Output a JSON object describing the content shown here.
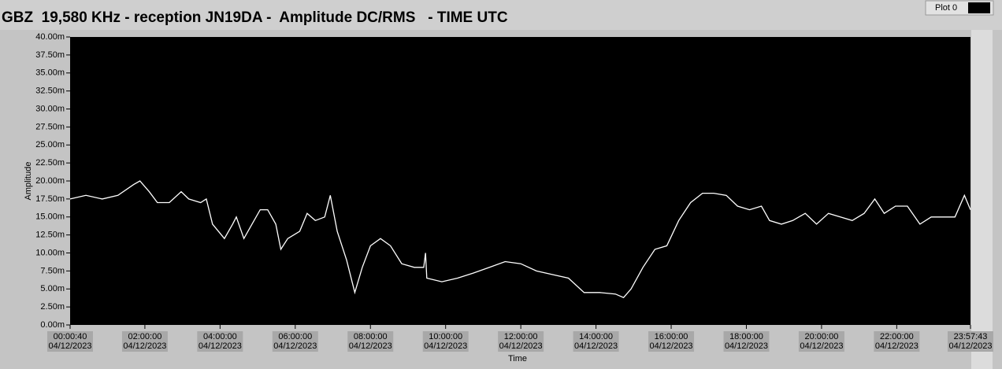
{
  "chart_data": {
    "type": "line",
    "title": "GBZ  19,580 KHz - reception JN19DA -  Amplitude DC/RMS   - TIME UTC",
    "xlabel": "Time",
    "ylabel": "Amplitude",
    "x": [
      "00:00:40",
      "00:26",
      "00:52",
      "01:17",
      "01:42",
      "01:52",
      "02:07",
      "02:20",
      "02:39",
      "02:58",
      "03:10",
      "03:29",
      "03:38",
      "03:48",
      "04:07",
      "04:20",
      "04:26",
      "04:38",
      "04:51",
      "05:04",
      "05:16",
      "05:29",
      "05:37",
      "05:48",
      "06:07",
      "06:19",
      "06:32",
      "06:47",
      "06:56",
      "07:07",
      "07:22",
      "07:35",
      "07:47",
      "08:00",
      "08:16",
      "08:32",
      "08:50",
      "09:10",
      "09:25",
      "09:28",
      "09:30",
      "09:54",
      "10:19",
      "10:44",
      "11:10",
      "11:35",
      "12:00",
      "12:25",
      "12:50",
      "13:16",
      "13:41",
      "14:06",
      "14:31",
      "14:44",
      "14:56",
      "15:15",
      "15:34",
      "15:53",
      "16:12",
      "16:31",
      "16:50",
      "17:08",
      "17:28",
      "17:46",
      "18:05",
      "18:24",
      "18:37",
      "18:56",
      "19:14",
      "19:34",
      "19:52",
      "20:11",
      "20:30",
      "20:49",
      "21:08",
      "21:25",
      "21:40",
      "21:58",
      "22:17",
      "22:37",
      "22:55",
      "23:14",
      "23:33",
      "23:48",
      "23:57:43"
    ],
    "series": [
      {
        "name": "Plot 0",
        "color": "#ffffff",
        "values": [
          17.5,
          18,
          17.5,
          18,
          19.5,
          20,
          18.5,
          17,
          17,
          18.5,
          17.5,
          17,
          17.5,
          14,
          12,
          14,
          15,
          12,
          14,
          16,
          16,
          14,
          10.5,
          12,
          13,
          15.5,
          14.5,
          15,
          18,
          13,
          9,
          4.5,
          8,
          11,
          12,
          11,
          8.5,
          8,
          8,
          10,
          6.5,
          6,
          6.5,
          7.2,
          8,
          8.8,
          8.5,
          7.5,
          7,
          6.5,
          4.5,
          4.5,
          4.3,
          3.8,
          5,
          8,
          10.5,
          11,
          14.5,
          17,
          18.3,
          18.3,
          18,
          16.5,
          16,
          16.5,
          14.5,
          14,
          14.5,
          15.5,
          14,
          15.5,
          15,
          14.5,
          15.5,
          17.5,
          15.5,
          16.5,
          16.5,
          14,
          15,
          15,
          15,
          18,
          16
        ]
      }
    ],
    "xlim": [
      "00:00:40",
      "23:57:43"
    ],
    "xticks": [
      {
        "value": "00:00:40",
        "label": "00:00:40",
        "date": "04/12/2023"
      },
      {
        "value": "02:00:00",
        "label": "02:00:00",
        "date": "04/12/2023"
      },
      {
        "value": "04:00:00",
        "label": "04:00:00",
        "date": "04/12/2023"
      },
      {
        "value": "06:00:00",
        "label": "06:00:00",
        "date": "04/12/2023"
      },
      {
        "value": "08:00:00",
        "label": "08:00:00",
        "date": "04/12/2023"
      },
      {
        "value": "10:00:00",
        "label": "10:00:00",
        "date": "04/12/2023"
      },
      {
        "value": "12:00:00",
        "label": "12:00:00",
        "date": "04/12/2023"
      },
      {
        "value": "14:00:00",
        "label": "14:00:00",
        "date": "04/12/2023"
      },
      {
        "value": "16:00:00",
        "label": "16:00:00",
        "date": "04/12/2023"
      },
      {
        "value": "18:00:00",
        "label": "18:00:00",
        "date": "04/12/2023"
      },
      {
        "value": "20:00:00",
        "label": "20:00:00",
        "date": "04/12/2023"
      },
      {
        "value": "22:00:00",
        "label": "22:00:00",
        "date": "04/12/2023"
      },
      {
        "value": "23:57:43",
        "label": "23:57:43",
        "date": "04/12/2023"
      }
    ],
    "ylim": [
      0,
      40
    ],
    "yticks": [
      {
        "value": 0,
        "label": "0.00m"
      },
      {
        "value": 2.5,
        "label": "2.50m"
      },
      {
        "value": 5,
        "label": "5.00m"
      },
      {
        "value": 7.5,
        "label": "7.50m"
      },
      {
        "value": 10,
        "label": "10.00m"
      },
      {
        "value": 12.5,
        "label": "12.50m"
      },
      {
        "value": 15,
        "label": "15.00m"
      },
      {
        "value": 17.5,
        "label": "17.50m"
      },
      {
        "value": 20,
        "label": "20.00m"
      },
      {
        "value": 22.5,
        "label": "22.50m"
      },
      {
        "value": 25,
        "label": "25.00m"
      },
      {
        "value": 27.5,
        "label": "27.50m"
      },
      {
        "value": 30,
        "label": "30.00m"
      },
      {
        "value": 32.5,
        "label": "32.50m"
      },
      {
        "value": 35,
        "label": "35.00m"
      },
      {
        "value": 37.5,
        "label": "37.50m"
      },
      {
        "value": 40,
        "label": "40.00m"
      }
    ],
    "grid": false,
    "background": "#000000"
  }
}
